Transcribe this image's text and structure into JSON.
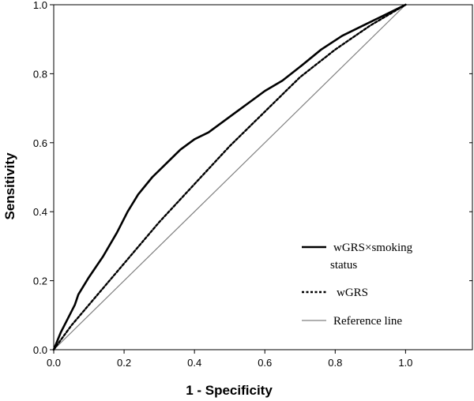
{
  "chart_data": {
    "type": "line",
    "title": "",
    "xlabel": "1 - Specificity",
    "ylabel": "Sensitivity",
    "xlim": [
      0,
      1.19
    ],
    "ylim": [
      0,
      1.0
    ],
    "x_ticks": [
      "0.0",
      "0.2",
      "0.4",
      "0.6",
      "0.8",
      "1.0"
    ],
    "y_ticks": [
      "0.0",
      "0.2",
      "0.4",
      "0.6",
      "0.8",
      "1.0"
    ],
    "grid": false,
    "legend_position": "bottom-right",
    "series": [
      {
        "name": "wGRS×smoking status",
        "name_lines": [
          "wGRS×smoking",
          "status"
        ],
        "style": "solid-thick",
        "color": "#000000",
        "x": [
          0.0,
          0.02,
          0.04,
          0.06,
          0.07,
          0.1,
          0.14,
          0.18,
          0.21,
          0.24,
          0.28,
          0.32,
          0.36,
          0.4,
          0.44,
          0.48,
          0.52,
          0.56,
          0.6,
          0.65,
          0.7,
          0.76,
          0.82,
          0.88,
          0.94,
          1.0
        ],
        "y": [
          0.0,
          0.05,
          0.09,
          0.13,
          0.16,
          0.21,
          0.27,
          0.34,
          0.4,
          0.45,
          0.5,
          0.54,
          0.58,
          0.61,
          0.63,
          0.66,
          0.69,
          0.72,
          0.75,
          0.78,
          0.82,
          0.87,
          0.91,
          0.94,
          0.97,
          1.0
        ]
      },
      {
        "name": "wGRS",
        "style": "dashed",
        "color": "#000000",
        "x": [
          0.0,
          0.05,
          0.1,
          0.2,
          0.3,
          0.4,
          0.5,
          0.6,
          0.7,
          0.8,
          0.9,
          1.0
        ],
        "y": [
          0.0,
          0.07,
          0.13,
          0.25,
          0.37,
          0.48,
          0.59,
          0.69,
          0.79,
          0.87,
          0.94,
          1.0
        ]
      },
      {
        "name": "Reference line",
        "style": "solid-thin",
        "color": "#808080",
        "x": [
          0.0,
          1.0
        ],
        "y": [
          0.0,
          1.0
        ]
      }
    ]
  }
}
